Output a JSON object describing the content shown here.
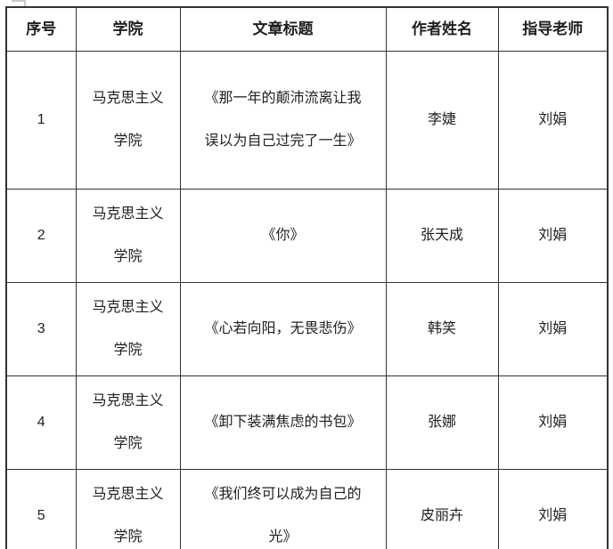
{
  "table": {
    "headers": {
      "index": "序号",
      "college": "学院",
      "title": "文章标题",
      "author": "作者姓名",
      "teacher": "指导老师"
    },
    "rows": [
      {
        "index": "1",
        "college": "马克思主义\n学院",
        "title": "《那一年的颠沛流离让我\n误以为自己过完了一生》",
        "author": "李婕",
        "teacher": "刘娟"
      },
      {
        "index": "2",
        "college": "马克思主义\n学院",
        "title": "《你》",
        "author": "张天成",
        "teacher": "刘娟"
      },
      {
        "index": "3",
        "college": "马克思主义\n学院",
        "title": "《心若向阳，无畏悲伤》",
        "author": "韩笑",
        "teacher": "刘娟"
      },
      {
        "index": "4",
        "college": "马克思主义\n学院",
        "title": "《卸下装满焦虑的书包》",
        "author": "张娜",
        "teacher": "刘娟"
      },
      {
        "index": "5",
        "college": "马克思主义\n学院",
        "title": "《我们终可以成为自己的\n光》",
        "author": "皮丽卉",
        "teacher": "刘娟"
      }
    ]
  },
  "colors": {
    "border": "#333333",
    "text": "#1f1f1f",
    "background": "#ffffff"
  }
}
